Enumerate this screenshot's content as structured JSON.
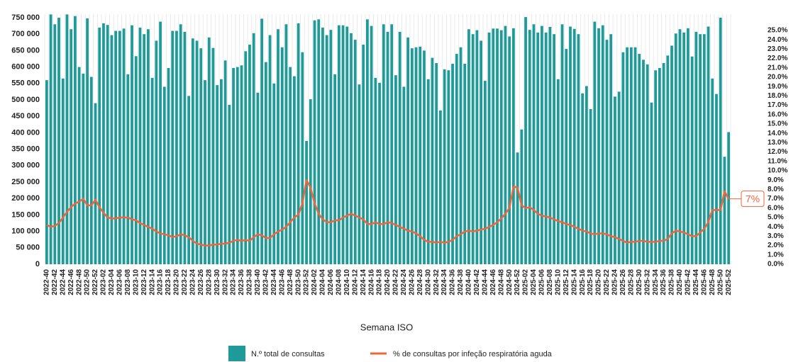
{
  "chart_data": {
    "type": "bar-line",
    "x_label": "Semana ISO",
    "annotation": "7%",
    "categories": [
      "2022-40",
      null,
      "2022-42",
      null,
      "2022-44",
      null,
      "2022-46",
      null,
      "2022-48",
      null,
      "2022-50",
      null,
      "2022-52",
      null,
      "2023-02",
      null,
      "2023-04",
      null,
      "2023-06",
      null,
      "2023-08",
      null,
      "2023-10",
      null,
      "2023-12",
      null,
      "2023-14",
      null,
      "2023-16",
      null,
      "2023-18",
      null,
      "2023-20",
      null,
      "2023-22",
      null,
      "2023-24",
      null,
      "2023-26",
      null,
      "2023-28",
      null,
      "2023-30",
      null,
      "2023-32",
      null,
      "2023-34",
      null,
      "2023-36",
      null,
      "2023-38",
      null,
      "2023-40",
      null,
      "2023-42",
      null,
      "2023-44",
      null,
      "2023-46",
      null,
      "2023-48",
      null,
      "2023-50",
      null,
      "2023-52",
      null,
      "2024-02",
      null,
      "2024-04",
      null,
      "2024-06",
      null,
      "2024-08",
      null,
      "2024-10",
      null,
      "2024-12",
      null,
      "2024-14",
      null,
      "2024-16",
      null,
      "2024-18",
      null,
      "2024-20",
      null,
      "2024-22",
      null,
      "2024-24",
      null,
      "2024-26",
      null,
      "2024-28",
      null,
      "2024-30",
      null,
      "2024-32",
      null,
      "2024-34",
      null,
      "2024-36",
      null,
      "2024-38",
      null,
      "2024-40",
      null,
      "2024-42",
      null,
      "2024-44",
      null,
      "2024-46",
      null,
      "2024-48",
      null,
      "2024-50",
      null,
      "2024-52",
      null,
      "2025-02",
      null,
      "2025-04",
      null,
      "2025-06",
      null,
      "2025-08",
      null,
      "2025-10",
      null,
      "2025-12",
      null,
      "2025-14",
      null,
      "2025-16",
      null,
      "2025-18",
      null,
      "2025-20",
      null,
      "2025-22",
      null,
      "2025-24",
      null,
      "2025-26",
      null,
      "2025-28",
      null,
      "2025-30",
      null,
      "2025-32",
      null,
      "2025-34",
      null,
      "2025-36",
      null,
      "2025-38",
      null,
      "2025-40",
      null,
      "2025-42",
      null,
      "2025-44",
      null,
      "2025-46",
      null,
      "2025-48",
      null,
      "2025-50",
      null,
      "2025-52"
    ],
    "series": [
      {
        "name": "N.º total de consultas",
        "type": "bar",
        "color": "#1f9a98",
        "values": [
          560000,
          760000,
          730000,
          750000,
          565000,
          760000,
          715000,
          755000,
          600000,
          580000,
          748000,
          570000,
          490000,
          720000,
          733000,
          728000,
          697000,
          710000,
          710000,
          717000,
          578000,
          727000,
          633000,
          720000,
          700000,
          715000,
          567000,
          680000,
          738000,
          540000,
          597000,
          710000,
          710000,
          730000,
          707000,
          512000,
          687000,
          680000,
          657000,
          560000,
          690000,
          658000,
          545000,
          563000,
          620000,
          485000,
          597000,
          600000,
          605000,
          648000,
          668000,
          703000,
          522000,
          747000,
          615000,
          697000,
          550000,
          715000,
          660000,
          730000,
          600000,
          572000,
          733000,
          645000,
          375000,
          502000,
          742000,
          745000,
          720000,
          697000,
          713000,
          578000,
          727000,
          727000,
          723000,
          703000,
          683000,
          547000,
          668000,
          745000,
          725000,
          567000,
          552000,
          730000,
          707000,
          730000,
          575000,
          707000,
          540000,
          690000,
          657000,
          660000,
          662000,
          650000,
          563000,
          628000,
          612000,
          468000,
          593000,
          590000,
          610000,
          640000,
          660000,
          610000,
          715000,
          700000,
          712000,
          680000,
          558000,
          705000,
          717000,
          717000,
          712000,
          725000,
          693000,
          718000,
          340000,
          410000,
          752000,
          713000,
          730000,
          705000,
          725000,
          705000,
          722000,
          700000,
          563000,
          730000,
          655000,
          723000,
          716000,
          700000,
          520000,
          542000,
          472000,
          738000,
          718000,
          727000,
          683000,
          700000,
          510000,
          525000,
          645000,
          660000,
          660000,
          660000,
          640000,
          622000,
          608000,
          492000,
          590000,
          597000,
          612000,
          635000,
          665000,
          702000,
          715000,
          705000,
          718000,
          632000,
          707000,
          700000,
          700000,
          723000,
          565000,
          518000,
          750000,
          327000,
          402000
        ]
      },
      {
        "name": "% de consultas por infeção respiratória aguda",
        "type": "line",
        "axis": "y2",
        "color": "#f0663a",
        "values": [
          4.2,
          4.0,
          4.1,
          4.4,
          5.0,
          5.6,
          6.1,
          6.5,
          6.7,
          7.0,
          6.3,
          6.3,
          6.9,
          6.1,
          5.5,
          5.0,
          4.9,
          4.9,
          5.0,
          5.0,
          5.0,
          4.8,
          4.7,
          4.4,
          4.2,
          4.0,
          3.8,
          3.5,
          3.3,
          3.2,
          3.1,
          2.9,
          3.0,
          3.2,
          3.1,
          2.9,
          2.5,
          2.2,
          2.1,
          2.0,
          2.0,
          2.1,
          2.1,
          2.2,
          2.2,
          2.3,
          2.5,
          2.6,
          2.5,
          2.6,
          2.5,
          2.9,
          3.2,
          3.1,
          2.8,
          2.8,
          3.2,
          3.5,
          3.7,
          4.0,
          4.5,
          5.0,
          5.3,
          6.5,
          9.0,
          8.2,
          6.5,
          5.4,
          4.8,
          4.5,
          4.5,
          4.7,
          4.7,
          5.0,
          5.2,
          5.4,
          5.2,
          5.0,
          4.8,
          4.3,
          4.3,
          4.5,
          4.3,
          4.3,
          4.5,
          4.4,
          4.2,
          4.0,
          3.8,
          3.6,
          3.5,
          3.3,
          3.0,
          2.6,
          2.4,
          2.4,
          2.3,
          2.4,
          2.3,
          2.4,
          2.6,
          3.0,
          3.2,
          3.5,
          3.6,
          3.5,
          3.6,
          3.7,
          3.8,
          4.0,
          4.2,
          4.5,
          4.9,
          5.4,
          6.0,
          8.3,
          8.2,
          6.3,
          6.0,
          6.1,
          5.8,
          5.4,
          5.2,
          5.1,
          5.0,
          4.8,
          4.6,
          4.5,
          4.3,
          4.2,
          4.0,
          3.8,
          3.6,
          3.5,
          3.3,
          3.2,
          3.3,
          3.3,
          3.2,
          3.0,
          2.9,
          2.7,
          2.5,
          2.3,
          2.4,
          2.4,
          2.5,
          2.5,
          2.4,
          2.4,
          2.4,
          2.5,
          2.5,
          2.7,
          3.3,
          3.6,
          3.5,
          3.4,
          3.2,
          3.0,
          3.0,
          3.4,
          3.8,
          4.5,
          5.8,
          5.8,
          5.8,
          7.8,
          7.0
        ]
      }
    ],
    "ylim": [
      0,
      750000
    ],
    "yticks": [
      0,
      {
        "value": 50000,
        "label": "50 000"
      },
      {
        "value": 100000,
        "label": "100 000"
      },
      {
        "value": 150000,
        "label": "150 000"
      },
      {
        "value": 200000,
        "label": "200 000"
      },
      {
        "value": 250000,
        "label": "250 000"
      },
      {
        "value": 300000,
        "label": "300 000"
      },
      {
        "value": 350000,
        "label": "350 000"
      },
      {
        "value": 400000,
        "label": "400 000"
      },
      {
        "value": 450000,
        "label": "450 000"
      },
      {
        "value": 500000,
        "label": "500 000"
      },
      {
        "value": 550000,
        "label": "550 000"
      },
      {
        "value": 600000,
        "label": "600 000"
      },
      {
        "value": 650000,
        "label": "650 000"
      },
      {
        "value": 700000,
        "label": "700 000"
      },
      {
        "value": 750000,
        "label": "750 000"
      }
    ],
    "y2lim": [
      0,
      25
    ],
    "y2ticks": [
      {
        "value": 0,
        "label": "0.0%"
      },
      {
        "value": 1,
        "label": "1.0%"
      },
      {
        "value": 2,
        "label": "2.0%"
      },
      {
        "value": 3,
        "label": "3.0%"
      },
      {
        "value": 4,
        "label": "4.0%"
      },
      {
        "value": 5,
        "label": "5.0%"
      },
      {
        "value": 6,
        "label": "6.0%"
      },
      {
        "value": 7,
        "label": "7.0%"
      },
      {
        "value": 8,
        "label": "8.0%"
      },
      {
        "value": 9,
        "label": "9.0%"
      },
      {
        "value": 10,
        "label": "10.0%"
      },
      {
        "value": 11,
        "label": "11.0%"
      },
      {
        "value": 12,
        "label": "12.0%"
      },
      {
        "value": 13,
        "label": "13.0%"
      },
      {
        "value": 14,
        "label": "14.0%"
      },
      {
        "value": 15,
        "label": "15.0%"
      },
      {
        "value": 16,
        "label": "16.0%"
      },
      {
        "value": 17,
        "label": "17.0%"
      },
      {
        "value": 18,
        "label": "18.0%"
      },
      {
        "value": 19,
        "label": "19.0%"
      },
      {
        "value": 20,
        "label": "20.0%"
      },
      {
        "value": 21,
        "label": "21.0%"
      },
      {
        "value": 22,
        "label": "22.0%"
      },
      {
        "value": 23,
        "label": "23.0%"
      },
      {
        "value": 24,
        "label": "24.0%"
      },
      {
        "value": 25,
        "label": "25.0%"
      }
    ],
    "grid": false
  }
}
